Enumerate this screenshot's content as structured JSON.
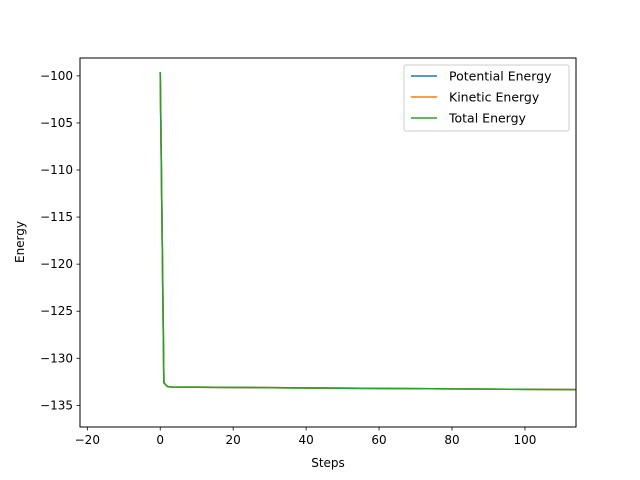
{
  "chart_data": {
    "type": "line",
    "title": "",
    "xlabel": "Steps",
    "ylabel": "Energy",
    "xlim": [
      -22,
      114
    ],
    "ylim": [
      -137.3,
      -98.1
    ],
    "xticks": [
      -20,
      0,
      20,
      40,
      60,
      80,
      100
    ],
    "xtick_labels": [
      "−20",
      "0",
      "20",
      "40",
      "60",
      "80",
      "100"
    ],
    "yticks": [
      -100,
      -105,
      -110,
      -115,
      -120,
      -125,
      -130,
      -135
    ],
    "ytick_labels": [
      "−100",
      "−105",
      "−110",
      "−115",
      "−120",
      "−125",
      "−130",
      "−135"
    ],
    "grid": false,
    "legend_position": "top-right",
    "series": [
      {
        "name": "Potential Energy",
        "color": "#1f77b4",
        "x": [
          0,
          1,
          2,
          3,
          10,
          20,
          40,
          60,
          80,
          100,
          114
        ],
        "y": [
          -99.6,
          -132.6,
          -133.0,
          -133.05,
          -133.07,
          -133.1,
          -133.15,
          -133.2,
          -133.25,
          -133.3,
          -133.33
        ]
      },
      {
        "name": "Kinetic Energy",
        "color": "#ff7f0e",
        "x": [
          0,
          1,
          2,
          3,
          10,
          20,
          40,
          60,
          80,
          100,
          114
        ],
        "y": [
          -99.6,
          -132.6,
          -133.0,
          -133.05,
          -133.07,
          -133.1,
          -133.15,
          -133.2,
          -133.25,
          -133.3,
          -133.33
        ]
      },
      {
        "name": "Total Energy",
        "color": "#2ca02c",
        "x": [
          0,
          1,
          2,
          3,
          10,
          20,
          40,
          60,
          80,
          100,
          114
        ],
        "y": [
          -99.6,
          -132.6,
          -133.0,
          -133.05,
          -133.07,
          -133.1,
          -133.15,
          -133.2,
          -133.25,
          -133.3,
          -133.33
        ]
      }
    ]
  }
}
